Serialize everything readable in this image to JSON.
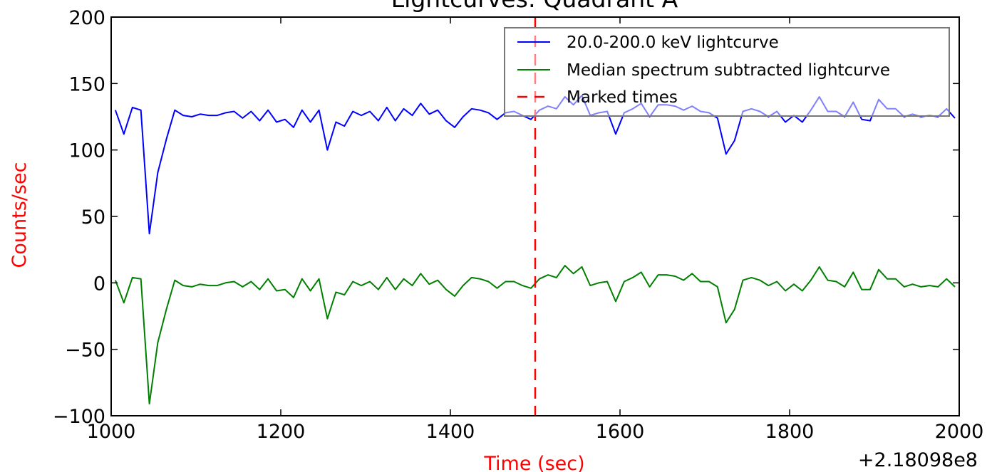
{
  "chart_data": {
    "type": "line",
    "title": "Lightcurves: Quadrant A",
    "xlabel": "Time (sec)",
    "ylabel": "Counts/sec",
    "label_color": "#ff0000",
    "x_offset_label": "+2.18098e8",
    "xlim": [
      1000,
      2000
    ],
    "ylim": [
      -100,
      200
    ],
    "x_ticks": [
      1000,
      1200,
      1400,
      1600,
      1800,
      2000
    ],
    "x_tick_labels": [
      "1000",
      "1200",
      "1400",
      "1600",
      "1800",
      "2000"
    ],
    "y_ticks": [
      -100,
      -50,
      0,
      50,
      100,
      150,
      200
    ],
    "y_tick_labels": [
      "−100",
      "−50",
      "0",
      "50",
      "100",
      "150",
      "200"
    ],
    "grid": false,
    "legend_position": "top-right",
    "x": [
      1005,
      1015,
      1025,
      1035,
      1045,
      1055,
      1065,
      1075,
      1085,
      1095,
      1105,
      1115,
      1125,
      1135,
      1145,
      1155,
      1165,
      1175,
      1185,
      1195,
      1205,
      1215,
      1225,
      1235,
      1245,
      1255,
      1265,
      1275,
      1285,
      1295,
      1305,
      1315,
      1325,
      1335,
      1345,
      1355,
      1365,
      1375,
      1385,
      1395,
      1405,
      1415,
      1425,
      1435,
      1445,
      1455,
      1465,
      1475,
      1485,
      1495,
      1505,
      1515,
      1525,
      1535,
      1545,
      1555,
      1565,
      1575,
      1585,
      1595,
      1605,
      1615,
      1625,
      1635,
      1645,
      1655,
      1665,
      1675,
      1685,
      1695,
      1705,
      1715,
      1725,
      1735,
      1745,
      1755,
      1765,
      1775,
      1785,
      1795,
      1805,
      1815,
      1825,
      1835,
      1845,
      1855,
      1865,
      1875,
      1885,
      1895,
      1905,
      1915,
      1925,
      1935,
      1945,
      1955,
      1965,
      1975,
      1985,
      1995
    ],
    "series": [
      {
        "name": "20.0-200.0 keV lightcurve",
        "color": "#0000ff",
        "values": [
          130,
          112,
          132,
          130,
          37,
          83,
          108,
          130,
          126,
          125,
          127,
          126,
          126,
          128,
          129,
          124,
          129,
          122,
          130,
          121,
          123,
          117,
          130,
          121,
          130,
          100,
          121,
          118,
          129,
          126,
          129,
          122,
          132,
          122,
          131,
          126,
          135,
          127,
          130,
          122,
          117,
          125,
          131,
          130,
          128,
          123,
          128,
          129,
          126,
          123,
          130,
          133,
          131,
          140,
          134,
          141,
          126,
          128,
          129,
          112,
          128,
          131,
          135,
          125,
          134,
          134,
          133,
          130,
          133,
          129,
          128,
          124,
          97,
          107,
          129,
          131,
          129,
          125,
          129,
          121,
          126,
          121,
          130,
          140,
          129,
          129,
          125,
          136,
          123,
          122,
          138,
          131,
          131,
          125,
          127,
          125,
          126,
          125,
          131,
          124
        ]
      },
      {
        "name": "Median spectrum subtracted lightcurve",
        "color": "#008000",
        "values": [
          2,
          -15,
          4,
          3,
          -91,
          -45,
          -20,
          2,
          -2,
          -3,
          -1,
          -2,
          -2,
          0,
          1,
          -3,
          1,
          -5,
          3,
          -6,
          -5,
          -11,
          3,
          -6,
          3,
          -27,
          -7,
          -9,
          1,
          -2,
          1,
          -5,
          4,
          -5,
          3,
          -2,
          7,
          -1,
          2,
          -5,
          -10,
          -2,
          4,
          3,
          1,
          -4,
          1,
          1,
          -2,
          -4,
          3,
          6,
          4,
          13,
          7,
          12,
          -2,
          0,
          1,
          -14,
          1,
          4,
          8,
          -3,
          6,
          6,
          5,
          2,
          7,
          1,
          1,
          -3,
          -30,
          -20,
          2,
          4,
          2,
          -2,
          1,
          -6,
          -1,
          -6,
          2,
          12,
          2,
          1,
          -3,
          8,
          -5,
          -5,
          10,
          3,
          3,
          -3,
          -1,
          -3,
          -2,
          -3,
          3,
          -3
        ]
      }
    ],
    "markers": {
      "name": "Marked times",
      "color": "#ff0000",
      "x": [
        1500
      ]
    }
  }
}
